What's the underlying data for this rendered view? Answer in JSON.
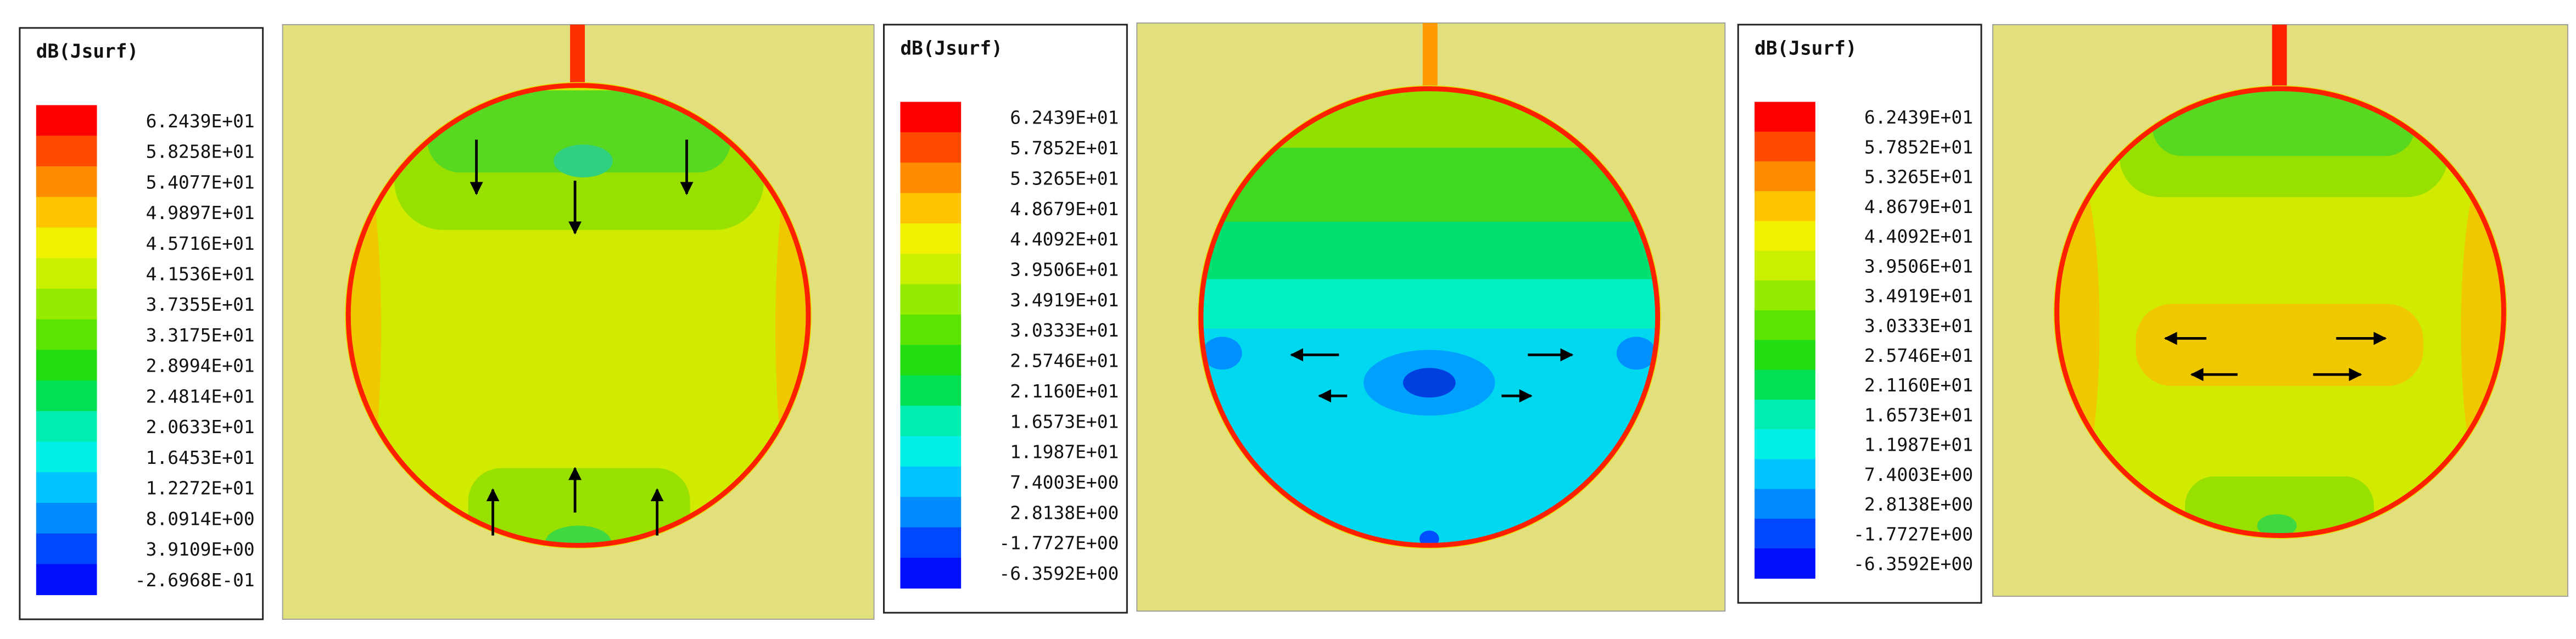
{
  "panels": [
    {
      "legend": {
        "title": "dB(Jsurf)",
        "labels": [
          "6.2439E+01",
          "5.8258E+01",
          "5.4077E+01",
          "4.9897E+01",
          "4.5716E+01",
          "4.1536E+01",
          "3.7355E+01",
          "3.3175E+01",
          "2.8994E+01",
          "2.4814E+01",
          "2.0633E+01",
          "1.6453E+01",
          "1.2272E+01",
          "8.0914E+00",
          "3.9109E+00",
          "-2.6968E-01"
        ]
      }
    },
    {
      "legend": {
        "title": "dB(Jsurf)",
        "labels": [
          "6.2439E+01",
          "5.7852E+01",
          "5.3265E+01",
          "4.8679E+01",
          "4.4092E+01",
          "3.9506E+01",
          "3.4919E+01",
          "3.0333E+01",
          "2.5746E+01",
          "2.1160E+01",
          "1.6573E+01",
          "1.1987E+01",
          "7.4003E+00",
          "2.8138E+00",
          "-1.7727E+00",
          "-6.3592E+00"
        ]
      }
    },
    {
      "legend": {
        "title": "dB(Jsurf)",
        "labels": [
          "6.2439E+01",
          "5.7852E+01",
          "5.3265E+01",
          "4.8679E+01",
          "4.4092E+01",
          "3.9506E+01",
          "3.4919E+01",
          "3.0333E+01",
          "2.5746E+01",
          "2.1160E+01",
          "1.6573E+01",
          "1.1987E+01",
          "7.4003E+00",
          "2.8138E+00",
          "-1.7727E+00",
          "-6.3592E+00"
        ]
      }
    }
  ]
}
